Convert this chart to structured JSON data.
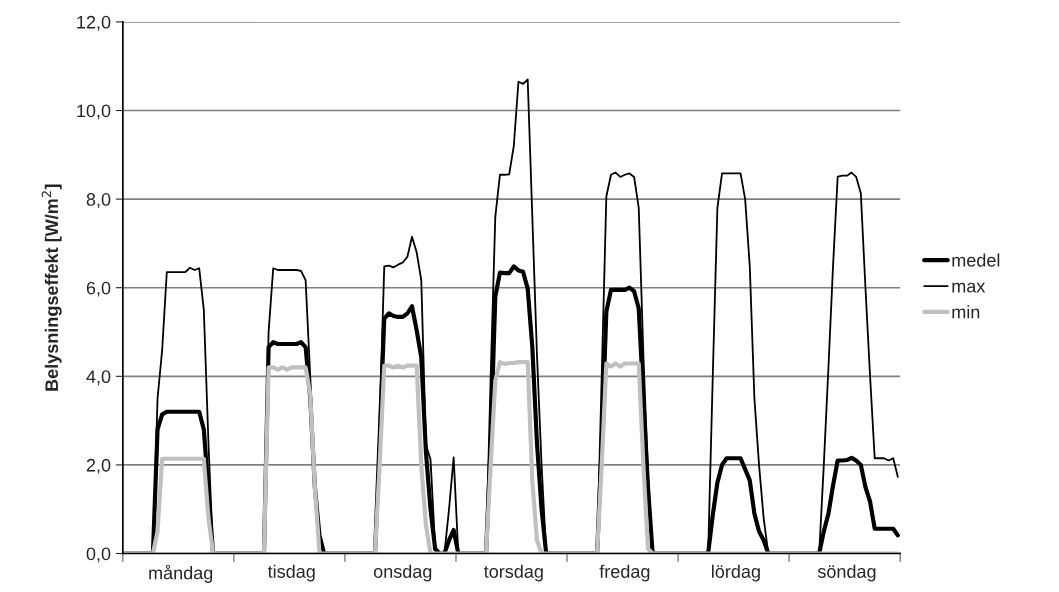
{
  "chart_data": {
    "type": "line",
    "ylabel": "Belysningseffekt [W/m$^{2}$]",
    "categories": [
      null,
      null,
      null,
      null,
      null,
      null,
      null,
      null,
      null,
      null,
      null,
      null,
      "måndag",
      null,
      null,
      null,
      null,
      null,
      null,
      null,
      null,
      null,
      null,
      null,
      null,
      null,
      null,
      null,
      null,
      null,
      null,
      null,
      null,
      null,
      null,
      null,
      "tisdag",
      null,
      null,
      null,
      null,
      null,
      null,
      null,
      null,
      null,
      null,
      null,
      null,
      null,
      null,
      null,
      null,
      null,
      null,
      null,
      null,
      null,
      null,
      null,
      "onsdag",
      null,
      null,
      null,
      null,
      null,
      null,
      null,
      null,
      null,
      null,
      null,
      null,
      null,
      null,
      null,
      null,
      null,
      null,
      null,
      null,
      null,
      null,
      null,
      "torsdag",
      null,
      null,
      null,
      null,
      null,
      null,
      null,
      null,
      null,
      null,
      null,
      null,
      null,
      null,
      null,
      null,
      null,
      null,
      null,
      null,
      null,
      null,
      null,
      "fredag",
      null,
      null,
      null,
      null,
      null,
      null,
      null,
      null,
      null,
      null,
      null,
      null,
      null,
      null,
      null,
      null,
      null,
      null,
      null,
      null,
      null,
      null,
      null,
      "lördag",
      null,
      null,
      null,
      null,
      null,
      null,
      null,
      null,
      null,
      null,
      null,
      null,
      null,
      null,
      null,
      null,
      null,
      null,
      null,
      null,
      null,
      null,
      null,
      "söndag",
      null,
      null,
      null,
      null,
      null,
      null,
      null,
      null,
      null,
      null,
      null
    ],
    "ylim": [
      0,
      12
    ],
    "yticks": [
      {
        "value": 0,
        "label": "0,0"
      },
      {
        "value": 2,
        "label": "2,0"
      },
      {
        "value": 4,
        "label": "4,0"
      },
      {
        "value": 6,
        "label": "6,0"
      },
      {
        "value": 8,
        "label": "8,0"
      },
      {
        "value": 10,
        "label": "10,0"
      },
      {
        "value": 12,
        "label": "12,0"
      }
    ],
    "grid": "y",
    "legend": "right",
    "marker": "none",
    "line_style": "solid",
    "series": [
      {
        "name": "medel",
        "color": "#000000",
        "values": [
          0,
          0,
          0,
          0,
          0,
          0,
          0,
          2.8,
          3.14,
          3.2,
          3.2,
          3.2,
          3.2,
          3.2,
          3.2,
          3.2,
          3.2,
          2.8,
          1.4,
          0,
          0,
          0,
          0,
          0,
          0,
          0,
          0,
          0,
          0,
          0,
          0,
          4.66,
          4.77,
          4.73,
          4.73,
          4.73,
          4.73,
          4.73,
          4.77,
          4.66,
          3.52,
          1.5,
          0.4,
          0,
          0,
          0,
          0,
          0,
          0,
          0,
          0,
          0,
          0,
          0,
          0,
          2.6,
          5.3,
          5.42,
          5.36,
          5.34,
          5.34,
          5.42,
          5.58,
          5.04,
          4.43,
          2.3,
          1.0,
          0.1,
          0,
          0,
          0.3,
          0.53,
          0,
          0,
          0,
          0,
          0,
          0,
          0,
          2.5,
          5.8,
          6.34,
          6.33,
          6.33,
          6.48,
          6.39,
          6.36,
          5.98,
          4.66,
          2.5,
          1.0,
          0,
          0,
          0,
          0,
          0,
          0,
          0,
          0,
          0,
          0,
          0,
          0,
          2.5,
          5.46,
          5.95,
          5.95,
          5.95,
          5.95,
          6.0,
          5.92,
          5.53,
          3.5,
          1.5,
          0,
          0,
          0,
          0,
          0,
          0,
          0,
          0,
          0,
          0,
          0,
          0,
          0,
          0.87,
          1.6,
          2.0,
          2.15,
          2.15,
          2.15,
          2.15,
          1.9,
          1.65,
          0.9,
          0.5,
          0.3,
          0,
          0,
          0,
          0,
          0,
          0,
          0,
          0,
          0,
          0,
          0,
          0,
          0.5,
          0.9,
          1.54,
          2.1,
          2.1,
          2.11,
          2.16,
          2.1,
          2.0,
          1.5,
          1.17,
          0.56,
          0.56,
          0.56,
          0.56,
          0.56,
          0.41
        ]
      },
      {
        "name": "max",
        "color": "#000000",
        "values": [
          0,
          0,
          0,
          0,
          0,
          0,
          0,
          3.5,
          4.6,
          6.35,
          6.35,
          6.35,
          6.35,
          6.35,
          6.45,
          6.4,
          6.44,
          5.5,
          2.5,
          0,
          0,
          0,
          0,
          0,
          0,
          0,
          0,
          0,
          0,
          0,
          0,
          5.0,
          6.44,
          6.4,
          6.4,
          6.4,
          6.4,
          6.4,
          6.38,
          6.17,
          4.0,
          1.6,
          0.4,
          0,
          0,
          0,
          0,
          0,
          0,
          0,
          0,
          0,
          0,
          0,
          0,
          3.0,
          6.48,
          6.5,
          6.46,
          6.52,
          6.57,
          6.7,
          7.15,
          6.8,
          6.17,
          2.46,
          2.12,
          0.15,
          0,
          0,
          1.0,
          2.17,
          0,
          0,
          0,
          0,
          0,
          0,
          0,
          4.0,
          7.6,
          8.55,
          8.55,
          8.56,
          9.2,
          10.65,
          10.6,
          10.7,
          7.6,
          4.5,
          2.0,
          0,
          0,
          0,
          0,
          0,
          0,
          0,
          0,
          0,
          0,
          0,
          0,
          4.0,
          8.06,
          8.55,
          8.6,
          8.5,
          8.55,
          8.58,
          8.5,
          7.8,
          4.5,
          1.8,
          0,
          0,
          0,
          0,
          0,
          0,
          0,
          0,
          0,
          0,
          0,
          0,
          0,
          4.0,
          7.8,
          8.58,
          8.58,
          8.58,
          8.58,
          8.58,
          8.0,
          6.48,
          3.5,
          2.0,
          0.8,
          0,
          0,
          0,
          0,
          0,
          0,
          0,
          0,
          0,
          0,
          0,
          0,
          2.0,
          4.2,
          6.5,
          8.51,
          8.53,
          8.53,
          8.6,
          8.5,
          8.13,
          6.0,
          4.0,
          2.15,
          2.15,
          2.15,
          2.1,
          2.15,
          1.73
        ]
      },
      {
        "name": "min",
        "color": "#c0c0c0",
        "values": [
          0,
          0,
          0,
          0,
          0,
          0,
          0,
          0.5,
          2.14,
          2.14,
          2.14,
          2.14,
          2.14,
          2.14,
          2.14,
          2.14,
          2.14,
          2.14,
          0.8,
          0,
          0,
          0,
          0,
          0,
          0,
          0,
          0,
          0,
          0,
          0,
          0,
          4.2,
          4.2,
          4.15,
          4.2,
          4.15,
          4.2,
          4.2,
          4.2,
          4.2,
          3.6,
          1.5,
          0,
          0,
          0,
          0,
          0,
          0,
          0,
          0,
          0,
          0,
          0,
          0,
          0,
          2.0,
          4.24,
          4.24,
          4.2,
          4.24,
          4.2,
          4.24,
          4.24,
          4.24,
          2.0,
          0.64,
          0,
          0,
          0,
          0,
          0,
          0,
          0,
          0,
          0,
          0,
          0,
          0,
          0,
          2.0,
          3.9,
          4.32,
          4.28,
          4.3,
          4.3,
          4.32,
          4.32,
          4.32,
          1.63,
          0.3,
          0,
          0,
          0,
          0,
          0,
          0,
          0,
          0,
          0,
          0,
          0,
          0,
          0,
          2.0,
          4.29,
          4.22,
          4.29,
          4.22,
          4.29,
          4.29,
          4.29,
          4.29,
          2.0,
          0.11,
          0,
          0,
          0,
          0,
          0,
          0,
          0,
          0,
          0,
          0,
          0,
          0,
          0,
          0,
          0,
          0,
          0,
          0,
          0,
          0,
          0,
          0,
          0,
          0,
          0,
          0,
          0,
          0,
          0,
          0,
          0,
          0,
          0,
          0,
          0,
          0,
          0,
          0,
          0,
          0,
          0,
          0,
          0,
          0,
          0,
          0,
          0,
          0,
          0,
          0,
          0,
          0,
          0,
          0
        ]
      }
    ]
  }
}
